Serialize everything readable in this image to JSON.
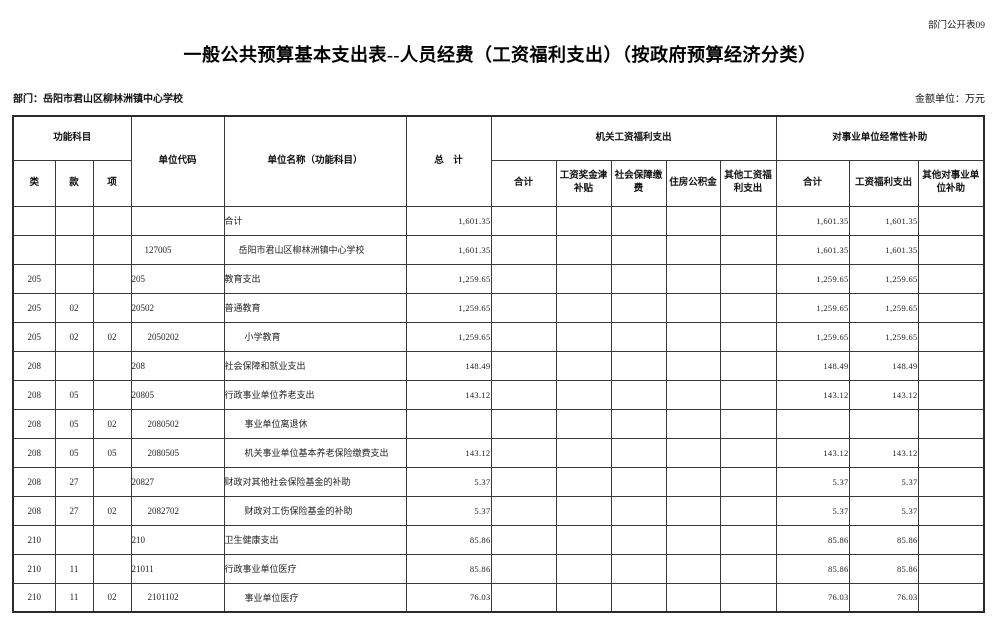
{
  "page": {
    "doc_label": "部门公开表09",
    "title": "一般公共预算基本支出表--人员经费（工资福利支出）（按政府预算经济分类）",
    "department_label": "部门：岳阳市君山区柳林洲镇中心学校",
    "unit_label": "金额单位：万元"
  },
  "table": {
    "headers": {
      "func_group": "功能科目",
      "func_cols": [
        "类",
        "款",
        "项"
      ],
      "unit_code": "单位代码",
      "unit_name": "单位名称（功能科目）",
      "total": "总　计",
      "org_group": "机关工资福利支出",
      "org_cols": [
        "合计",
        "工资奖金津补贴",
        "社会保障缴费",
        "住房公积金",
        "其他工资福利支出"
      ],
      "inst_group": "对事业单位经常性补助",
      "inst_cols": [
        "合计",
        "工资福利支出",
        "其他对事业单位补助"
      ]
    },
    "rows": [
      {
        "lei": "",
        "kuan": "",
        "xiang": "",
        "code": "",
        "name": "合计",
        "indent": 0,
        "total": "1,601.35",
        "org": [
          "",
          "",
          "",
          "",
          ""
        ],
        "inst": [
          "1,601.35",
          "1,601.35",
          ""
        ]
      },
      {
        "lei": "",
        "kuan": "",
        "xiang": "",
        "code": "127005",
        "name": "岳阳市君山区柳林洲镇中心学校",
        "indent": 1,
        "total": "1,601.35",
        "org": [
          "",
          "",
          "",
          "",
          ""
        ],
        "inst": [
          "1,601.35",
          "1,601.35",
          ""
        ]
      },
      {
        "lei": "205",
        "kuan": "",
        "xiang": "",
        "code": "205",
        "name": "教育支出",
        "indent": 0,
        "total": "1,259.65",
        "org": [
          "",
          "",
          "",
          "",
          ""
        ],
        "inst": [
          "1,259.65",
          "1,259.65",
          ""
        ]
      },
      {
        "lei": "205",
        "kuan": "02",
        "xiang": "",
        "code": "20502",
        "name": "普通教育",
        "indent": 0,
        "total": "1,259.65",
        "org": [
          "",
          "",
          "",
          "",
          ""
        ],
        "inst": [
          "1,259.65",
          "1,259.65",
          ""
        ]
      },
      {
        "lei": "205",
        "kuan": "02",
        "xiang": "02",
        "code": "2050202",
        "name": "小学教育",
        "indent": 2,
        "total": "1,259.65",
        "org": [
          "",
          "",
          "",
          "",
          ""
        ],
        "inst": [
          "1,259.65",
          "1,259.65",
          ""
        ]
      },
      {
        "lei": "208",
        "kuan": "",
        "xiang": "",
        "code": "208",
        "name": "社会保障和就业支出",
        "indent": 0,
        "total": "148.49",
        "org": [
          "",
          "",
          "",
          "",
          ""
        ],
        "inst": [
          "148.49",
          "148.49",
          ""
        ]
      },
      {
        "lei": "208",
        "kuan": "05",
        "xiang": "",
        "code": "20805",
        "name": "行政事业单位养老支出",
        "indent": 0,
        "total": "143.12",
        "org": [
          "",
          "",
          "",
          "",
          ""
        ],
        "inst": [
          "143.12",
          "143.12",
          ""
        ]
      },
      {
        "lei": "208",
        "kuan": "05",
        "xiang": "02",
        "code": "2080502",
        "name": "事业单位离退休",
        "indent": 2,
        "total": "",
        "org": [
          "",
          "",
          "",
          "",
          ""
        ],
        "inst": [
          "",
          "",
          ""
        ]
      },
      {
        "lei": "208",
        "kuan": "05",
        "xiang": "05",
        "code": "2080505",
        "name": "机关事业单位基本养老保险缴费支出",
        "indent": 2,
        "total": "143.12",
        "org": [
          "",
          "",
          "",
          "",
          ""
        ],
        "inst": [
          "143.12",
          "143.12",
          ""
        ]
      },
      {
        "lei": "208",
        "kuan": "27",
        "xiang": "",
        "code": "20827",
        "name": "财政对其他社会保险基金的补助",
        "indent": 0,
        "total": "5.37",
        "org": [
          "",
          "",
          "",
          "",
          ""
        ],
        "inst": [
          "5.37",
          "5.37",
          ""
        ]
      },
      {
        "lei": "208",
        "kuan": "27",
        "xiang": "02",
        "code": "2082702",
        "name": "财政对工伤保险基金的补助",
        "indent": 2,
        "total": "5.37",
        "org": [
          "",
          "",
          "",
          "",
          ""
        ],
        "inst": [
          "5.37",
          "5.37",
          ""
        ]
      },
      {
        "lei": "210",
        "kuan": "",
        "xiang": "",
        "code": "210",
        "name": "卫生健康支出",
        "indent": 0,
        "total": "85.86",
        "org": [
          "",
          "",
          "",
          "",
          ""
        ],
        "inst": [
          "85.86",
          "85.86",
          ""
        ]
      },
      {
        "lei": "210",
        "kuan": "11",
        "xiang": "",
        "code": "21011",
        "name": "行政事业单位医疗",
        "indent": 0,
        "total": "85.86",
        "org": [
          "",
          "",
          "",
          "",
          ""
        ],
        "inst": [
          "85.86",
          "85.86",
          ""
        ]
      },
      {
        "lei": "210",
        "kuan": "11",
        "xiang": "02",
        "code": "2101102",
        "name": "事业单位医疗",
        "indent": 2,
        "total": "76.03",
        "org": [
          "",
          "",
          "",
          "",
          ""
        ],
        "inst": [
          "76.03",
          "76.03",
          ""
        ]
      }
    ]
  }
}
